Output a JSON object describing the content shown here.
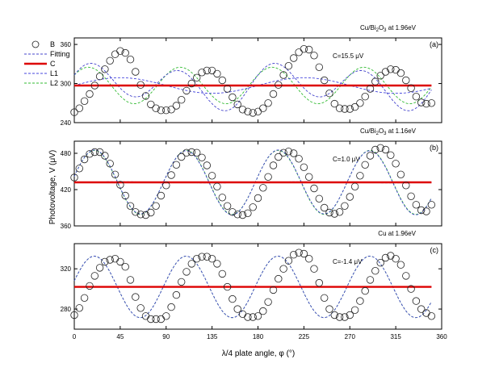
{
  "chart_data": {
    "type": "scatter",
    "x_axis": {
      "label": "λ/4 plate angle, φ (°)",
      "range": [
        0,
        360
      ],
      "ticks": [
        0,
        45,
        90,
        135,
        180,
        225,
        270,
        315,
        360
      ]
    },
    "y_axis_label": "Photovoltage, V (μV)",
    "legend": [
      {
        "key": "B",
        "label": "B",
        "style": "open-circle",
        "color": "#222222"
      },
      {
        "key": "Fitting",
        "label": "Fitting",
        "style": "dash",
        "color": "#4444cc"
      },
      {
        "key": "C",
        "label": "C",
        "style": "thick-line",
        "color": "#dd0000"
      },
      {
        "key": "L1",
        "label": "L1",
        "style": "dash",
        "color": "#4444dd"
      },
      {
        "key": "L2",
        "label": "L2",
        "style": "dash",
        "color": "#33bb33"
      }
    ],
    "panels": [
      {
        "id": "a",
        "panel_label": "(a)",
        "title": "Cu/Bi2O3 at 1.96eV",
        "annotation": "C=15.5 μV",
        "ylim": [
          240,
          370
        ],
        "yticks": [
          240,
          300,
          360
        ],
        "fit": {
          "C": 297,
          "a1": 12,
          "b1": 0,
          "a2": 23,
          "b2": 16
        },
        "B_points": [
          [
            0,
            256
          ],
          [
            5,
            262
          ],
          [
            10,
            273
          ],
          [
            15,
            284
          ],
          [
            20,
            297
          ],
          [
            25,
            311
          ],
          [
            30,
            322
          ],
          [
            35,
            335
          ],
          [
            40,
            345
          ],
          [
            45,
            350
          ],
          [
            50,
            347
          ],
          [
            55,
            337
          ],
          [
            60,
            318
          ],
          [
            65,
            298
          ],
          [
            70,
            281
          ],
          [
            75,
            268
          ],
          [
            80,
            262
          ],
          [
            85,
            259
          ],
          [
            90,
            259
          ],
          [
            95,
            260
          ],
          [
            100,
            266
          ],
          [
            105,
            275
          ],
          [
            110,
            289
          ],
          [
            115,
            300
          ],
          [
            120,
            309
          ],
          [
            125,
            317
          ],
          [
            130,
            320
          ],
          [
            135,
            320
          ],
          [
            140,
            315
          ],
          [
            145,
            305
          ],
          [
            150,
            292
          ],
          [
            155,
            279
          ],
          [
            160,
            268
          ],
          [
            165,
            260
          ],
          [
            170,
            257
          ],
          [
            175,
            255
          ],
          [
            180,
            257
          ],
          [
            185,
            262
          ],
          [
            190,
            270
          ],
          [
            195,
            284
          ],
          [
            200,
            298
          ],
          [
            205,
            313
          ],
          [
            210,
            327
          ],
          [
            215,
            339
          ],
          [
            220,
            348
          ],
          [
            225,
            353
          ],
          [
            230,
            352
          ],
          [
            235,
            343
          ],
          [
            240,
            325
          ],
          [
            245,
            305
          ],
          [
            250,
            285
          ],
          [
            255,
            269
          ],
          [
            260,
            262
          ],
          [
            265,
            261
          ],
          [
            270,
            261
          ],
          [
            275,
            264
          ],
          [
            280,
            270
          ],
          [
            285,
            280
          ],
          [
            290,
            292
          ],
          [
            295,
            303
          ],
          [
            300,
            312
          ],
          [
            305,
            318
          ],
          [
            310,
            322
          ],
          [
            315,
            321
          ],
          [
            320,
            316
          ],
          [
            325,
            305
          ],
          [
            330,
            293
          ],
          [
            335,
            280
          ],
          [
            340,
            271
          ],
          [
            345,
            269
          ],
          [
            350,
            270
          ]
        ]
      },
      {
        "id": "b",
        "panel_label": "(b)",
        "title": "Cu/Bi2O3 at 1.16eV",
        "annotation": "C=1.0 μV",
        "ylim": [
          360,
          500
        ],
        "yticks": [
          360,
          420,
          480
        ],
        "fit": {
          "C": 432,
          "a1": 1,
          "b1": 0,
          "a2": 52,
          "b2": 10
        },
        "B_points": [
          [
            0,
            440
          ],
          [
            5,
            455
          ],
          [
            10,
            470
          ],
          [
            15,
            479
          ],
          [
            20,
            482
          ],
          [
            25,
            482
          ],
          [
            30,
            476
          ],
          [
            35,
            463
          ],
          [
            40,
            445
          ],
          [
            45,
            428
          ],
          [
            50,
            410
          ],
          [
            55,
            393
          ],
          [
            60,
            383
          ],
          [
            65,
            379
          ],
          [
            70,
            378
          ],
          [
            75,
            382
          ],
          [
            80,
            393
          ],
          [
            85,
            410
          ],
          [
            90,
            427
          ],
          [
            95,
            444
          ],
          [
            100,
            461
          ],
          [
            105,
            474
          ],
          [
            110,
            481
          ],
          [
            115,
            482
          ],
          [
            120,
            481
          ],
          [
            125,
            473
          ],
          [
            130,
            460
          ],
          [
            135,
            443
          ],
          [
            140,
            425
          ],
          [
            145,
            407
          ],
          [
            150,
            393
          ],
          [
            155,
            383
          ],
          [
            160,
            379
          ],
          [
            165,
            378
          ],
          [
            170,
            381
          ],
          [
            175,
            391
          ],
          [
            180,
            406
          ],
          [
            185,
            423
          ],
          [
            190,
            441
          ],
          [
            195,
            460
          ],
          [
            200,
            474
          ],
          [
            205,
            481
          ],
          [
            210,
            483
          ],
          [
            215,
            480
          ],
          [
            220,
            471
          ],
          [
            225,
            457
          ],
          [
            230,
            441
          ],
          [
            235,
            422
          ],
          [
            240,
            405
          ],
          [
            245,
            390
          ],
          [
            250,
            382
          ],
          [
            255,
            380
          ],
          [
            260,
            383
          ],
          [
            265,
            393
          ],
          [
            270,
            408
          ],
          [
            275,
            425
          ],
          [
            280,
            443
          ],
          [
            285,
            461
          ],
          [
            290,
            476
          ],
          [
            295,
            486
          ],
          [
            300,
            489
          ],
          [
            305,
            486
          ],
          [
            310,
            477
          ],
          [
            315,
            463
          ],
          [
            320,
            445
          ],
          [
            325,
            427
          ],
          [
            330,
            409
          ],
          [
            335,
            395
          ],
          [
            340,
            386
          ],
          [
            345,
            384
          ],
          [
            350,
            395
          ]
        ]
      },
      {
        "id": "c",
        "panel_label": "(c)",
        "title": "Cu at 1.96eV",
        "annotation": "C=-1.4 μV",
        "ylim": [
          260,
          345
        ],
        "yticks": [
          280,
          320
        ],
        "fit": {
          "C": 302,
          "a1": 0,
          "b1": 0,
          "a2": 30,
          "b2": 6
        },
        "B_points": [
          [
            0,
            274
          ],
          [
            5,
            281
          ],
          [
            10,
            291
          ],
          [
            15,
            303
          ],
          [
            20,
            313
          ],
          [
            25,
            321
          ],
          [
            30,
            327
          ],
          [
            35,
            329
          ],
          [
            40,
            330
          ],
          [
            45,
            327
          ],
          [
            50,
            322
          ],
          [
            55,
            309
          ],
          [
            60,
            292
          ],
          [
            65,
            281
          ],
          [
            70,
            273
          ],
          [
            75,
            270
          ],
          [
            80,
            270
          ],
          [
            85,
            270
          ],
          [
            90,
            273
          ],
          [
            95,
            282
          ],
          [
            100,
            294
          ],
          [
            105,
            307
          ],
          [
            110,
            317
          ],
          [
            115,
            325
          ],
          [
            120,
            330
          ],
          [
            125,
            332
          ],
          [
            130,
            332
          ],
          [
            135,
            330
          ],
          [
            140,
            325
          ],
          [
            145,
            315
          ],
          [
            150,
            302
          ],
          [
            155,
            290
          ],
          [
            160,
            280
          ],
          [
            165,
            275
          ],
          [
            170,
            272
          ],
          [
            175,
            272
          ],
          [
            180,
            273
          ],
          [
            185,
            278
          ],
          [
            190,
            287
          ],
          [
            195,
            299
          ],
          [
            200,
            310
          ],
          [
            205,
            320
          ],
          [
            210,
            328
          ],
          [
            215,
            334
          ],
          [
            220,
            336
          ],
          [
            225,
            335
          ],
          [
            230,
            330
          ],
          [
            235,
            320
          ],
          [
            240,
            306
          ],
          [
            245,
            291
          ],
          [
            250,
            280
          ],
          [
            255,
            274
          ],
          [
            260,
            272
          ],
          [
            265,
            272
          ],
          [
            270,
            274
          ],
          [
            275,
            279
          ],
          [
            280,
            288
          ],
          [
            285,
            298
          ],
          [
            290,
            309
          ],
          [
            295,
            318
          ],
          [
            300,
            326
          ],
          [
            305,
            331
          ],
          [
            310,
            333
          ],
          [
            315,
            330
          ],
          [
            320,
            324
          ],
          [
            325,
            313
          ],
          [
            330,
            300
          ],
          [
            335,
            288
          ],
          [
            340,
            280
          ],
          [
            345,
            276
          ],
          [
            350,
            273
          ]
        ]
      }
    ]
  }
}
